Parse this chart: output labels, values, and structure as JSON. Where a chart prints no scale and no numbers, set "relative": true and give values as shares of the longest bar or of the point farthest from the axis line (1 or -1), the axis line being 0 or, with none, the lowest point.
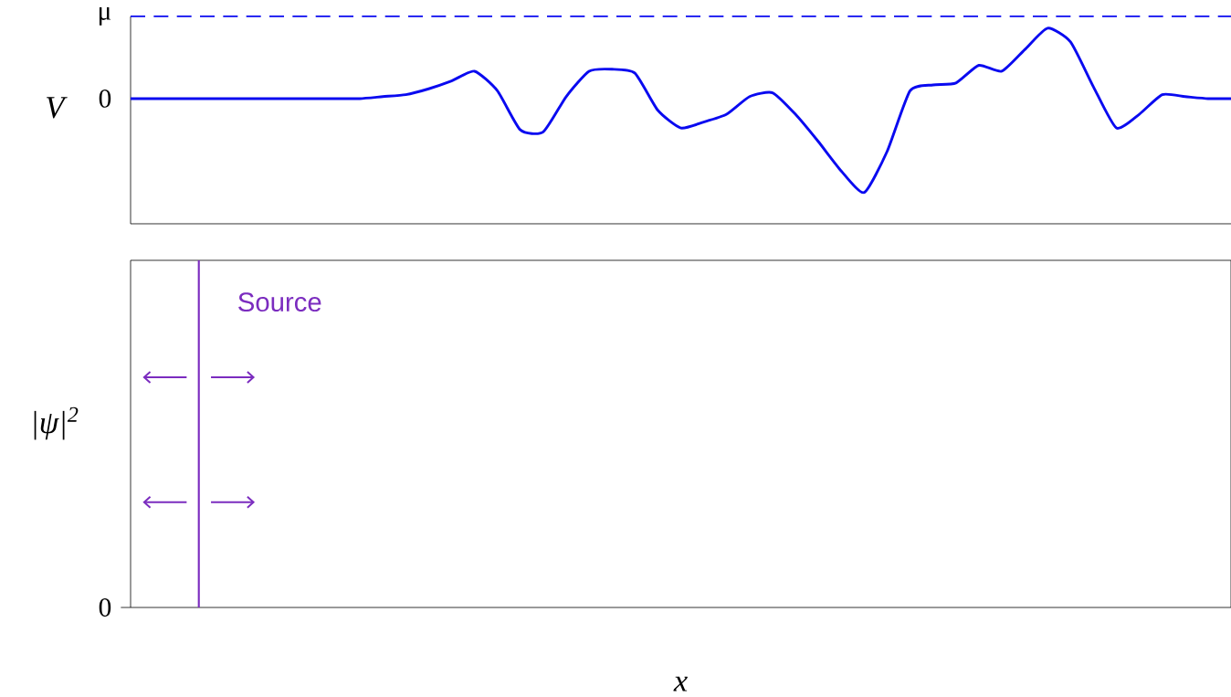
{
  "chart_data": [
    {
      "type": "line",
      "ylabel": "V",
      "relative": true,
      "categories": [
        null,
        null,
        null,
        null,
        null,
        null,
        null,
        null,
        null,
        null,
        null,
        null,
        null,
        null,
        null,
        null,
        null,
        null,
        null,
        null,
        null,
        null,
        null,
        null,
        null,
        null,
        null,
        null,
        null,
        null,
        null,
        null,
        null,
        null,
        null,
        null,
        null,
        null,
        null,
        null,
        null,
        null,
        null,
        null,
        null,
        null,
        null,
        null,
        null
      ],
      "series": [
        {
          "color": "#0a0af0",
          "values": [
            0.64,
            0.64,
            0.64,
            0.64,
            0.64,
            0.64,
            0.64,
            0.64,
            0.64,
            0.64,
            0.64,
            0.65,
            0.66,
            0.69,
            0.73,
            0.78,
            0.68,
            0.48,
            0.47,
            0.65,
            0.78,
            0.79,
            0.77,
            0.58,
            0.49,
            0.52,
            0.56,
            0.65,
            0.67,
            0.56,
            0.42,
            0.27,
            0.16,
            0.37,
            0.68,
            0.71,
            0.72,
            0.81,
            0.78,
            0.89,
            1,
            0.93,
            0.7,
            0.49,
            0.56,
            0.66,
            0.65,
            0.64,
            0.64
          ]
        }
      ],
      "ref_lines": [
        {
          "axis": "y",
          "value": 1.06,
          "label": "μ",
          "color": "#0a0af0",
          "line_style": "dashed"
        }
      ],
      "annotations": [
        "0"
      ]
    },
    {
      "type": "other",
      "ylabel": "|ψ|$^{2}$",
      "xlabel": "x",
      "annotations": [
        "Source",
        "0"
      ]
    }
  ]
}
